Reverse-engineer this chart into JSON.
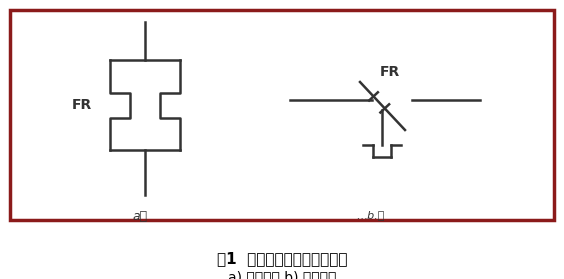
{
  "title1": "图1  热继电器图形及文字符号",
  "title2": "a) 发热元件 b) 常闭触点",
  "border_color": "#8B1A1A",
  "bg_color": "#ffffff",
  "symbol_color": "#333333",
  "label_FR_left": "FR",
  "label_FR_right": "FR",
  "label_a": "a）",
  "label_b": "…b.）",
  "title1_link_color": "#1155CC"
}
